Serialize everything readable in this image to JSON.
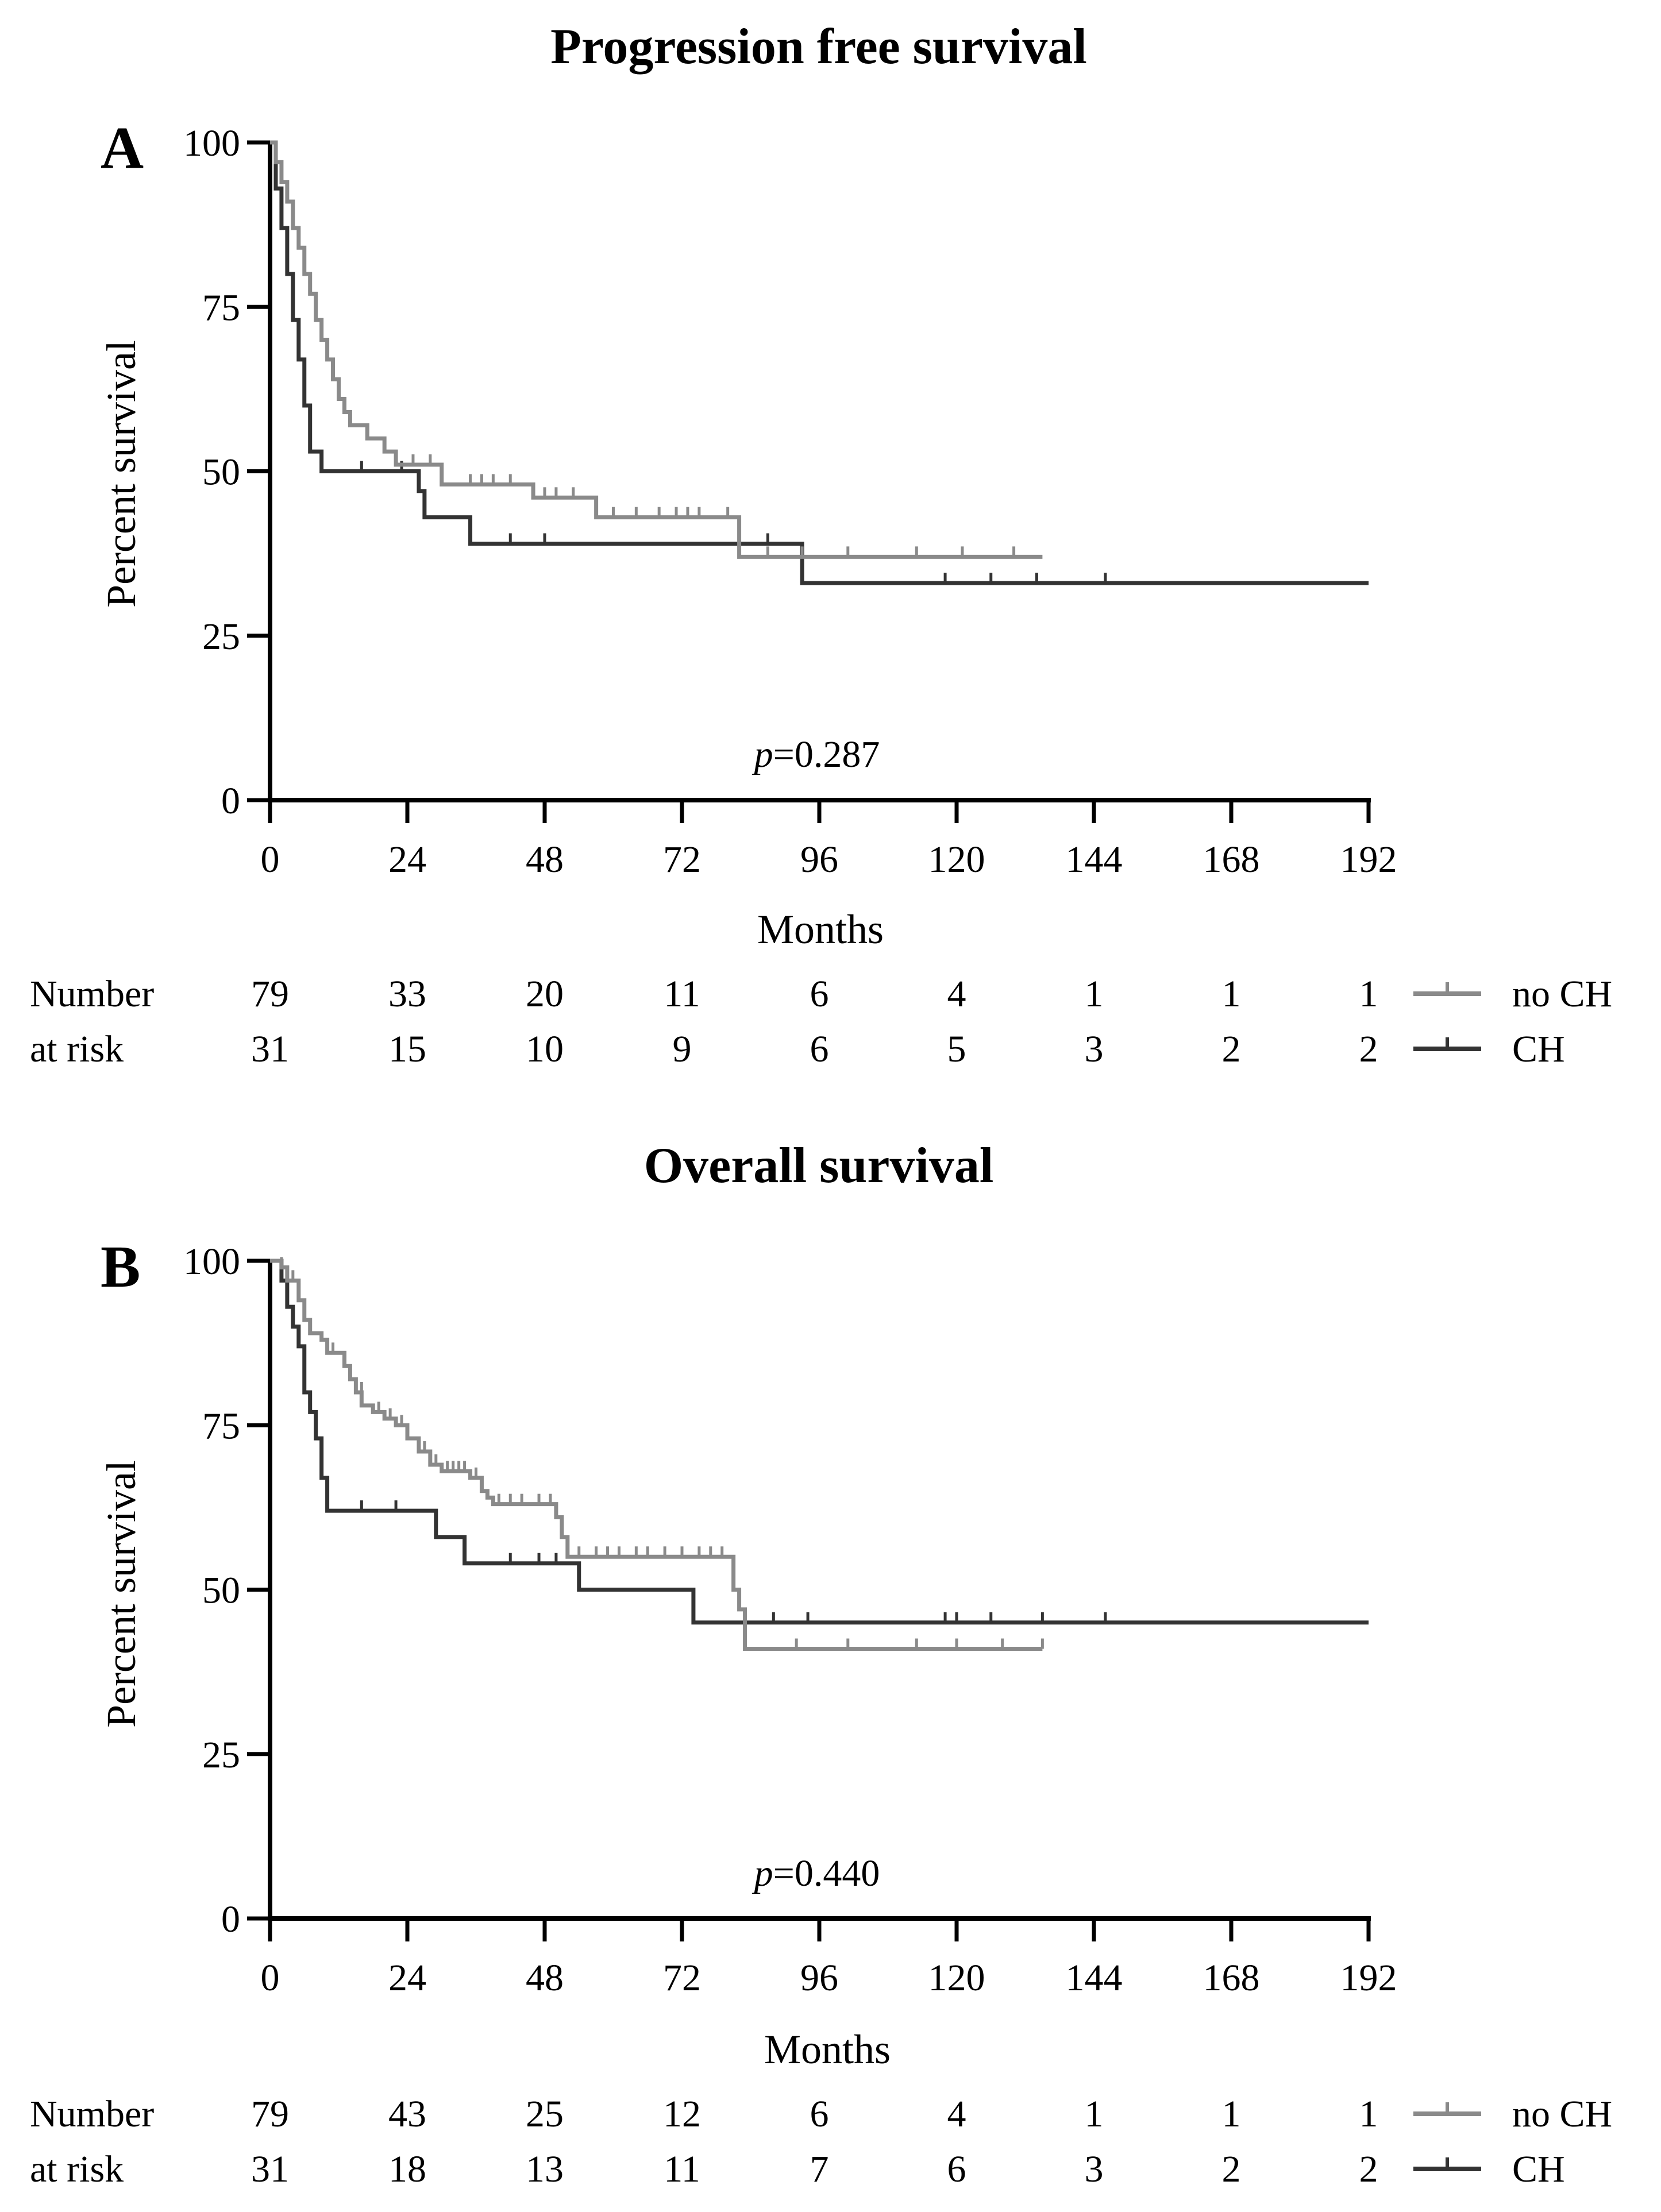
{
  "chart_data": [
    {
      "type": "line",
      "panel": "A",
      "title": "Progression free survival",
      "xlabel": "Months",
      "ylabel": "Percent survival",
      "xlim": [
        0,
        192
      ],
      "ylim": [
        0,
        100
      ],
      "xticks": [
        0,
        24,
        48,
        72,
        96,
        120,
        144,
        168,
        192
      ],
      "yticks": [
        0,
        25,
        50,
        75,
        100
      ],
      "p_value": {
        "prefix": "p",
        "text": "=0.287"
      },
      "legend_position": "right of risk table",
      "colors": {
        "no_ch": "#8a8a8a",
        "ch": "#333333"
      },
      "series": [
        {
          "name": "no CH",
          "steps": [
            [
              0,
              100
            ],
            [
              1,
              97
            ],
            [
              2,
              94
            ],
            [
              3,
              91
            ],
            [
              4,
              87
            ],
            [
              5,
              84
            ],
            [
              6,
              80
            ],
            [
              7,
              77
            ],
            [
              8,
              73
            ],
            [
              9,
              70
            ],
            [
              10,
              67
            ],
            [
              11,
              64
            ],
            [
              12,
              61
            ],
            [
              13,
              59
            ],
            [
              14,
              57
            ],
            [
              17,
              55
            ],
            [
              20,
              53
            ],
            [
              22,
              51
            ],
            [
              30,
              48
            ],
            [
              46,
              46
            ],
            [
              57,
              43
            ],
            [
              82,
              37
            ],
            [
              135,
              37
            ]
          ],
          "censored": [
            [
              17,
              55
            ],
            [
              25,
              51
            ],
            [
              28,
              51
            ],
            [
              35,
              48
            ],
            [
              37,
              48
            ],
            [
              39,
              48
            ],
            [
              42,
              48
            ],
            [
              48,
              46
            ],
            [
              50,
              46
            ],
            [
              53,
              46
            ],
            [
              60,
              43
            ],
            [
              64,
              43
            ],
            [
              68,
              43
            ],
            [
              71,
              43
            ],
            [
              73,
              43
            ],
            [
              75,
              43
            ],
            [
              80,
              43
            ],
            [
              87,
              37
            ],
            [
              93,
              37
            ],
            [
              101,
              37
            ],
            [
              113,
              37
            ],
            [
              121,
              37
            ],
            [
              130,
              37
            ]
          ]
        },
        {
          "name": "CH",
          "steps": [
            [
              0,
              100
            ],
            [
              1,
              93
            ],
            [
              2,
              87
            ],
            [
              3,
              80
            ],
            [
              4,
              73
            ],
            [
              5,
              67
            ],
            [
              6,
              60
            ],
            [
              7,
              53
            ],
            [
              9,
              50
            ],
            [
              26,
              47
            ],
            [
              27,
              43
            ],
            [
              35,
              39
            ],
            [
              93,
              33
            ],
            [
              192,
              33
            ]
          ],
          "censored": [
            [
              16,
              50
            ],
            [
              23,
              50
            ],
            [
              42,
              39
            ],
            [
              48,
              39
            ],
            [
              87,
              39
            ],
            [
              118,
              33
            ],
            [
              126,
              33
            ],
            [
              134,
              33
            ],
            [
              146,
              33
            ]
          ]
        }
      ],
      "risk_table": {
        "label_line1": "Number",
        "label_line2": "at risk",
        "times": [
          0,
          24,
          48,
          72,
          96,
          120,
          144,
          168,
          192
        ],
        "no_ch": [
          "79",
          "33",
          "20",
          "11",
          "6",
          "4",
          "1",
          "1",
          "1"
        ],
        "ch": [
          "31",
          "15",
          "10",
          "9",
          "6",
          "5",
          "3",
          "2",
          "2"
        ]
      }
    },
    {
      "type": "line",
      "panel": "B",
      "title": "Overall survival",
      "xlabel": "Months",
      "ylabel": "Percent survival",
      "xlim": [
        0,
        192
      ],
      "ylim": [
        0,
        100
      ],
      "xticks": [
        0,
        24,
        48,
        72,
        96,
        120,
        144,
        168,
        192
      ],
      "yticks": [
        0,
        25,
        50,
        75,
        100
      ],
      "p_value": {
        "prefix": "p",
        "text": "=0.440"
      },
      "legend_position": "right of risk table",
      "colors": {
        "no_ch": "#8a8a8a",
        "ch": "#333333"
      },
      "series": [
        {
          "name": "no CH",
          "steps": [
            [
              0,
              100
            ],
            [
              2,
              99
            ],
            [
              3,
              97
            ],
            [
              5,
              94
            ],
            [
              6,
              91
            ],
            [
              7,
              89
            ],
            [
              9,
              88
            ],
            [
              10,
              86
            ],
            [
              13,
              84
            ],
            [
              14,
              82
            ],
            [
              15,
              80
            ],
            [
              16,
              78
            ],
            [
              18,
              77
            ],
            [
              20,
              76
            ],
            [
              22,
              75
            ],
            [
              24,
              73
            ],
            [
              26,
              71
            ],
            [
              28,
              69
            ],
            [
              30,
              68
            ],
            [
              35,
              67
            ],
            [
              37,
              65
            ],
            [
              38,
              64
            ],
            [
              39,
              63
            ],
            [
              50,
              61
            ],
            [
              51,
              58
            ],
            [
              52,
              55
            ],
            [
              81,
              50
            ],
            [
              82,
              47
            ],
            [
              83,
              41
            ],
            [
              135,
              41
            ]
          ],
          "censored": [
            [
              2,
              99
            ],
            [
              4,
              97
            ],
            [
              11,
              86
            ],
            [
              16,
              80
            ],
            [
              19,
              77
            ],
            [
              21,
              76
            ],
            [
              23,
              75
            ],
            [
              27,
              71
            ],
            [
              29,
              69
            ],
            [
              31,
              68
            ],
            [
              32,
              68
            ],
            [
              33,
              68
            ],
            [
              34,
              68
            ],
            [
              36,
              67
            ],
            [
              40,
              63
            ],
            [
              42,
              63
            ],
            [
              44,
              63
            ],
            [
              47,
              63
            ],
            [
              49,
              63
            ],
            [
              54,
              55
            ],
            [
              57,
              55
            ],
            [
              59,
              55
            ],
            [
              61,
              55
            ],
            [
              64,
              55
            ],
            [
              66,
              55
            ],
            [
              69,
              55
            ],
            [
              72,
              55
            ],
            [
              75,
              55
            ],
            [
              77,
              55
            ],
            [
              79,
              55
            ],
            [
              92,
              41
            ],
            [
              101,
              41
            ],
            [
              113,
              41
            ],
            [
              120,
              41
            ],
            [
              128,
              41
            ],
            [
              135,
              41
            ]
          ]
        },
        {
          "name": "CH",
          "steps": [
            [
              0,
              100
            ],
            [
              2,
              97
            ],
            [
              3,
              93
            ],
            [
              4,
              90
            ],
            [
              5,
              87
            ],
            [
              6,
              80
            ],
            [
              7,
              77
            ],
            [
              8,
              73
            ],
            [
              9,
              67
            ],
            [
              10,
              62
            ],
            [
              29,
              58
            ],
            [
              34,
              54
            ],
            [
              54,
              50
            ],
            [
              74,
              45
            ],
            [
              192,
              45
            ]
          ],
          "censored": [
            [
              16,
              62
            ],
            [
              22,
              62
            ],
            [
              42,
              54
            ],
            [
              47,
              54
            ],
            [
              50,
              54
            ],
            [
              88,
              45
            ],
            [
              94,
              45
            ],
            [
              118,
              45
            ],
            [
              120,
              45
            ],
            [
              126,
              45
            ],
            [
              135,
              45
            ],
            [
              146,
              45
            ]
          ]
        }
      ],
      "risk_table": {
        "label_line1": "Number",
        "label_line2": "at risk",
        "times": [
          0,
          24,
          48,
          72,
          96,
          120,
          144,
          168,
          192
        ],
        "no_ch": [
          "79",
          "43",
          "25",
          "12",
          "6",
          "4",
          "1",
          "1",
          "1"
        ],
        "ch": [
          "31",
          "18",
          "13",
          "11",
          "7",
          "6",
          "3",
          "2",
          "2"
        ]
      }
    }
  ],
  "legend": {
    "no_ch_label": "no CH",
    "ch_label": "CH"
  }
}
